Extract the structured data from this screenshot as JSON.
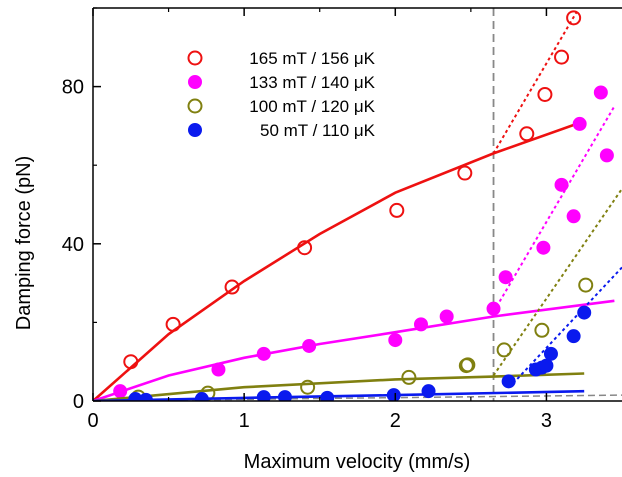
{
  "chart_data": {
    "type": "scatter",
    "xlabel": "Maximum velocity (mm/s)",
    "ylabel": "Damping force (pN)",
    "xlim": [
      0,
      3.5
    ],
    "ylim": [
      0,
      100
    ],
    "xticks": [
      0,
      1,
      2,
      3
    ],
    "yticks": [
      0,
      40,
      80
    ],
    "legend_position": "top-left",
    "vertical_line_x": 2.65,
    "series": [
      {
        "name": "165 mT / 156 μK",
        "color": "#ee1111",
        "marker": "open-circle",
        "points": [
          [
            0.25,
            10
          ],
          [
            0.53,
            19.5
          ],
          [
            0.92,
            29
          ],
          [
            1.4,
            39
          ],
          [
            2.01,
            48.5
          ],
          [
            2.46,
            58
          ],
          [
            2.87,
            68
          ],
          [
            2.99,
            78
          ],
          [
            3.1,
            87.5
          ],
          [
            3.18,
            97.5
          ]
        ],
        "fit": [
          [
            0,
            0
          ],
          [
            0.5,
            17
          ],
          [
            1.0,
            30.5
          ],
          [
            1.5,
            42.5
          ],
          [
            2.0,
            53
          ],
          [
            2.65,
            63
          ],
          [
            3.2,
            70.5
          ]
        ],
        "steep_fit": [
          [
            2.65,
            63
          ],
          [
            3.2,
            99
          ]
        ]
      },
      {
        "name": "133 mT / 140 μK",
        "color": "#ff00ff",
        "marker": "filled-circle",
        "points": [
          [
            0.18,
            2.5
          ],
          [
            0.83,
            8
          ],
          [
            1.13,
            12
          ],
          [
            1.43,
            14
          ],
          [
            2.0,
            15.5
          ],
          [
            2.17,
            19.5
          ],
          [
            2.34,
            21.5
          ],
          [
            2.65,
            23.5
          ],
          [
            2.73,
            31.5
          ],
          [
            2.98,
            39
          ],
          [
            3.1,
            55
          ],
          [
            3.18,
            47
          ],
          [
            3.22,
            70.5
          ],
          [
            3.36,
            78.5
          ],
          [
            3.4,
            62.5
          ]
        ],
        "fit": [
          [
            0,
            0
          ],
          [
            0.5,
            6.5
          ],
          [
            1.0,
            11
          ],
          [
            1.5,
            14.5
          ],
          [
            2.0,
            17.5
          ],
          [
            2.65,
            21.5
          ],
          [
            3.45,
            25.5
          ]
        ],
        "steep_fit": [
          [
            2.67,
            24
          ],
          [
            3.45,
            75
          ]
        ]
      },
      {
        "name": "100 mT / 120 μK",
        "color": "#808010",
        "marker": "open-circle",
        "points": [
          [
            0.3,
            1
          ],
          [
            0.76,
            2
          ],
          [
            1.42,
            3.5
          ],
          [
            2.09,
            6
          ],
          [
            2.47,
            9
          ],
          [
            2.48,
            9.2
          ],
          [
            2.72,
            13
          ],
          [
            2.97,
            18
          ],
          [
            3.26,
            29.5
          ]
        ],
        "fit": [
          [
            0,
            0
          ],
          [
            1.0,
            3.5
          ],
          [
            2.0,
            5.5
          ],
          [
            2.65,
            6.2
          ],
          [
            3.25,
            7
          ]
        ],
        "steep_fit": [
          [
            2.65,
            6.5
          ],
          [
            3.5,
            54
          ]
        ]
      },
      {
        "name": "50 mT / 110 μK",
        "color": "#0a1aee",
        "marker": "filled-circle",
        "points": [
          [
            0.28,
            0.5
          ],
          [
            0.35,
            0.3
          ],
          [
            0.72,
            0.5
          ],
          [
            1.13,
            1
          ],
          [
            1.27,
            1
          ],
          [
            1.55,
            0.8
          ],
          [
            1.99,
            1.5
          ],
          [
            2.22,
            2.5
          ],
          [
            2.75,
            5
          ],
          [
            2.93,
            8
          ],
          [
            2.97,
            8.5
          ],
          [
            3.0,
            9
          ],
          [
            3.03,
            12
          ],
          [
            3.18,
            16.5
          ],
          [
            3.25,
            22.5
          ]
        ],
        "fit": [
          [
            0,
            0
          ],
          [
            1.0,
            0.8
          ],
          [
            2.0,
            1.5
          ],
          [
            3.25,
            2.5
          ]
        ],
        "steep_fit": [
          [
            2.78,
            4.5
          ],
          [
            3.5,
            34
          ]
        ]
      }
    ],
    "baseline": [
      [
        0,
        0
      ],
      [
        3.5,
        1.5
      ]
    ]
  }
}
